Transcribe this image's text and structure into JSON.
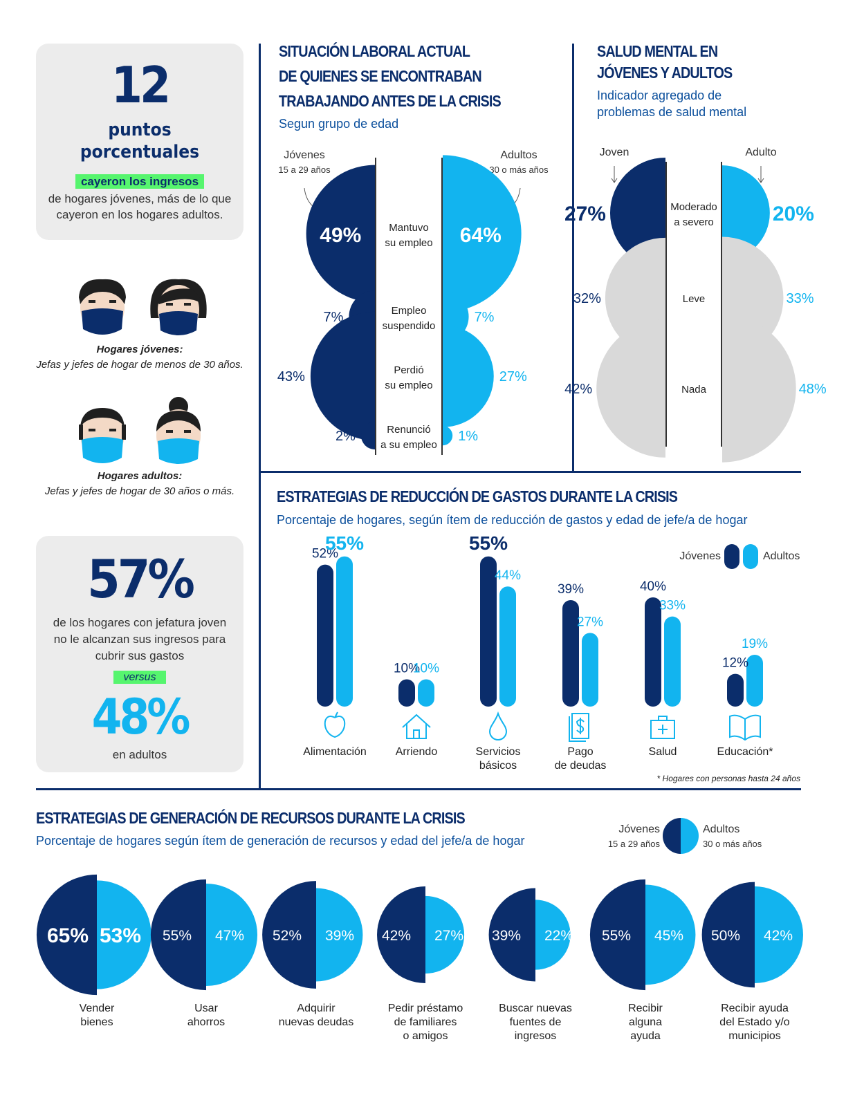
{
  "left": {
    "stat1": {
      "number": "12",
      "unit_line1": "puntos",
      "unit_line2": "porcentuales",
      "highlight": "cayeron los ingresos",
      "text_line1": "de hogares jóvenes, más de lo que",
      "text_line2": "cayeron en los hogares adultos."
    },
    "young_households": {
      "title": "Hogares jóvenes:",
      "desc": "Jefas y jefes de hogar de menos de 30 años."
    },
    "adult_households": {
      "title": "Hogares adultos:",
      "desc": "Jefas y jefes de hogar de 30 años o más."
    },
    "stat2": {
      "number": "57%",
      "text_line1": "de los hogares con jefatura joven",
      "text_line2": "no le alcanzan sus ingresos para",
      "text_line3": "cubrir sus gastos",
      "versus": "versus",
      "number2": "48%",
      "text2": "en adultos"
    }
  },
  "employment": {
    "title_line1": "SITUACIÓN LABORAL ACTUAL",
    "title_line2": "DE QUIENES SE ENCONTRABAN",
    "title_line3": "TRABAJANDO ANTES DE LA CRISIS",
    "subtitle": "Segun grupo de edad",
    "young_label": "Jóvenes",
    "young_sub": "15 a 29 años",
    "adult_label": "Adultos",
    "adult_sub": "30 o más años"
  },
  "mental": {
    "title_line1": "SALUD MENTAL EN",
    "title_line2": "JÓVENES Y ADULTOS",
    "subtitle_line1": "Indicador agregado de",
    "subtitle_line2": "problemas de salud mental",
    "young_label": "Joven",
    "adult_label": "Adulto"
  },
  "reduction": {
    "title": "ESTRATEGIAS DE REDUCCIÓN DE GASTOS DURANTE LA CRISIS",
    "subtitle": "Porcentaje de hogares, según ítem de reducción de gastos y edad de jefe/a de hogar",
    "legend_young": "Jóvenes",
    "legend_adult": "Adultos",
    "footnote": "* Hogares con personas hasta 24 años"
  },
  "generation": {
    "title": "ESTRATEGIAS DE GENERACIÓN DE RECURSOS DURANTE LA CRISIS",
    "subtitle": "Porcentaje de hogares según ítem de generación de recursos y edad del jefe/a de hogar",
    "legend_young": "Jóvenes",
    "legend_young_sub": "15 a 29 años",
    "legend_adult": "Adultos",
    "legend_adult_sub": "30 o más años"
  },
  "colors": {
    "young": "#0b2d6b",
    "adult": "#12b4ef",
    "neutral": "#d9d9d9",
    "highlight": "#56f56e"
  },
  "chart_data": [
    {
      "type": "bar",
      "id": "employment",
      "categories": [
        "Mantuvo su empleo",
        "Empleo suspendido",
        "Perdió su empleo",
        "Renunció a su empleo"
      ],
      "series": [
        {
          "name": "Jóvenes",
          "values": [
            49,
            7,
            43,
            2
          ]
        },
        {
          "name": "Adultos",
          "values": [
            64,
            7,
            27,
            1
          ]
        }
      ]
    },
    {
      "type": "bar",
      "id": "mental_health",
      "categories": [
        "Moderado a severo",
        "Leve",
        "Nada"
      ],
      "series": [
        {
          "name": "Joven",
          "values": [
            27,
            32,
            42
          ]
        },
        {
          "name": "Adulto",
          "values": [
            20,
            33,
            48
          ]
        }
      ]
    },
    {
      "type": "bar",
      "id": "reduction",
      "categories": [
        "Alimentación",
        "Arriendo",
        "Servicios básicos",
        "Pago de deudas",
        "Salud",
        "Educación*"
      ],
      "series": [
        {
          "name": "Jóvenes",
          "values": [
            52,
            10,
            55,
            39,
            40,
            12
          ]
        },
        {
          "name": "Adultos",
          "values": [
            55,
            10,
            44,
            27,
            33,
            19
          ]
        }
      ]
    },
    {
      "type": "bar",
      "id": "generation",
      "categories": [
        "Vender bienes",
        "Usar ahorros",
        "Adquirir nuevas deudas",
        "Pedir préstamo de familiares o amigos",
        "Buscar nuevas fuentes de ingresos",
        "Recibir alguna ayuda",
        "Recibir ayuda del Estado y/o municipios"
      ],
      "series": [
        {
          "name": "Jóvenes",
          "values": [
            65,
            55,
            52,
            42,
            39,
            55,
            50
          ]
        },
        {
          "name": "Adultos",
          "values": [
            53,
            47,
            39,
            27,
            22,
            45,
            42
          ]
        }
      ]
    }
  ]
}
